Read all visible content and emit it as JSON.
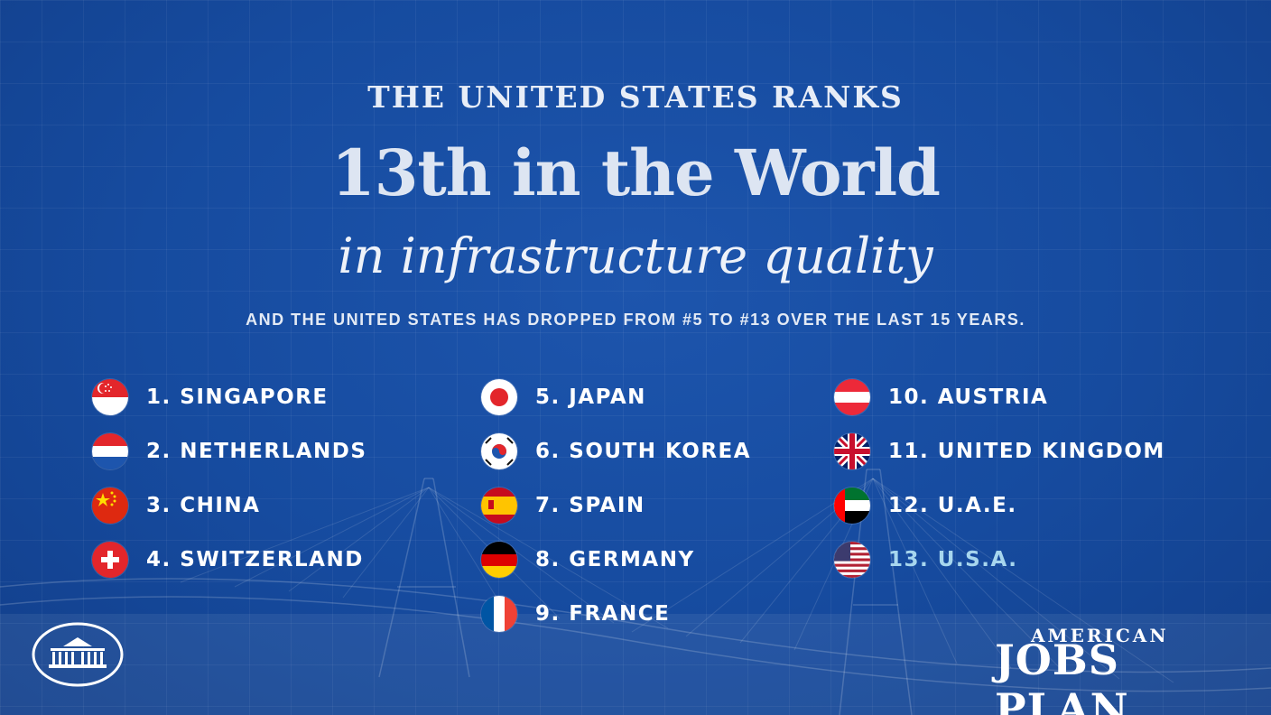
{
  "headline": {
    "line1": "THE UNITED STATES RANKS",
    "line2": "13th in the World",
    "line3": "in infrastructure quality",
    "subline": "AND THE UNITED STATES HAS DROPPED FROM #5 TO #13 OVER THE LAST 15 YEARS."
  },
  "rankings": [
    {
      "rank": 1,
      "label": "1. SINGAPORE",
      "flag": "singapore-flag-icon"
    },
    {
      "rank": 2,
      "label": "2. NETHERLANDS",
      "flag": "netherlands-flag-icon"
    },
    {
      "rank": 3,
      "label": "3. CHINA",
      "flag": "china-flag-icon"
    },
    {
      "rank": 4,
      "label": "4. SWITZERLAND",
      "flag": "switzerland-flag-icon"
    },
    {
      "rank": 5,
      "label": "5. JAPAN",
      "flag": "japan-flag-icon"
    },
    {
      "rank": 6,
      "label": "6. SOUTH KOREA",
      "flag": "south-korea-flag-icon"
    },
    {
      "rank": 7,
      "label": "7. SPAIN",
      "flag": "spain-flag-icon"
    },
    {
      "rank": 8,
      "label": "8. GERMANY",
      "flag": "germany-flag-icon"
    },
    {
      "rank": 9,
      "label": "9. FRANCE",
      "flag": "france-flag-icon"
    },
    {
      "rank": 10,
      "label": "10. AUSTRIA",
      "flag": "austria-flag-icon"
    },
    {
      "rank": 11,
      "label": "11. UNITED KINGDOM",
      "flag": "united-kingdom-flag-icon"
    },
    {
      "rank": 12,
      "label": "12. U.A.E.",
      "flag": "uae-flag-icon"
    },
    {
      "rank": 13,
      "label": "13. U.S.A.",
      "flag": "usa-flag-icon",
      "highlighted": true
    }
  ],
  "logo": {
    "line1": "AMERICAN",
    "line2": "JOBS PLAN"
  },
  "colors": {
    "background": "#164b9f",
    "text": "#ffffff",
    "highlight": "#a7d6ee"
  },
  "icons": [
    "white-house-logo-icon",
    "bridge-blueprint-illustration"
  ]
}
